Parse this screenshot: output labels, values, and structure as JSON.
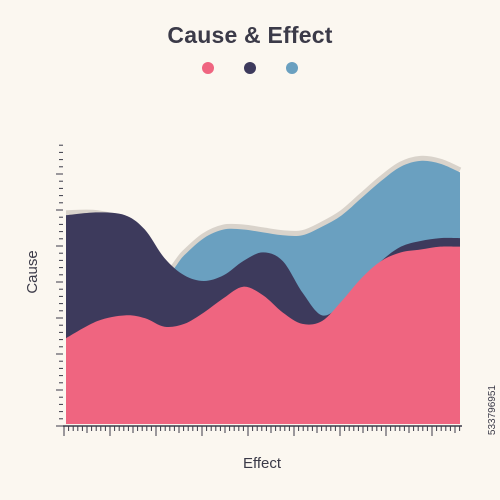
{
  "chart_data": {
    "type": "area",
    "title": "Cause & Effect",
    "xlabel": "Effect",
    "ylabel": "Cause",
    "ylim": [
      0,
      100
    ],
    "xlim": [
      0,
      100
    ],
    "series": [
      {
        "color": "#6aa0c0",
        "x": [
          0,
          8,
          15,
          20,
          25,
          30,
          35,
          40,
          45,
          50,
          55,
          60,
          65,
          70,
          75,
          80,
          85,
          90,
          95,
          100
        ],
        "values": [
          73,
          73,
          70,
          63,
          52,
          59,
          65,
          68,
          68,
          67,
          66,
          66,
          69,
          73,
          79,
          85,
          90,
          92,
          91,
          88
        ]
      },
      {
        "color": "#3d3a5c",
        "x": [
          0,
          8,
          15,
          20,
          25,
          30,
          35,
          40,
          45,
          50,
          55,
          60,
          65,
          70,
          75,
          80,
          85,
          90,
          95,
          100
        ],
        "values": [
          73,
          74,
          73,
          68,
          58,
          52,
          50,
          52,
          57,
          60,
          57,
          46,
          38,
          42,
          50,
          57,
          62,
          64,
          65,
          65
        ]
      },
      {
        "color": "#ef6580",
        "x": [
          0,
          8,
          15,
          20,
          25,
          30,
          35,
          40,
          45,
          50,
          55,
          60,
          65,
          70,
          75,
          80,
          85,
          90,
          95,
          100
        ],
        "values": [
          30,
          36,
          38,
          37,
          34,
          35,
          39,
          44,
          48,
          45,
          39,
          35,
          36,
          43,
          51,
          57,
          60,
          61,
          62,
          62
        ]
      }
    ]
  },
  "watermark": "533796951",
  "legend_colors": [
    "#ef6580",
    "#3d3a5c",
    "#6aa0c0"
  ]
}
